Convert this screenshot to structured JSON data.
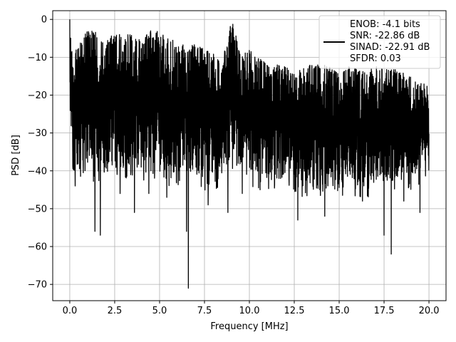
{
  "chart_data": {
    "type": "line",
    "title": "",
    "xlabel": "Frequency [MHz]",
    "ylabel": "PSD [dB]",
    "xlim": [
      -0.95,
      20.95
    ],
    "ylim": [
      -74.3,
      2.3
    ],
    "xticks": [
      0.0,
      2.5,
      5.0,
      7.5,
      10.0,
      12.5,
      15.0,
      17.5,
      20.0
    ],
    "xtick_labels": [
      "0.0",
      "2.5",
      "5.0",
      "7.5",
      "10.0",
      "12.5",
      "15.0",
      "17.5",
      "20.0"
    ],
    "yticks": [
      0,
      -10,
      -20,
      -30,
      -40,
      -50,
      -60,
      -70
    ],
    "ytick_labels": [
      "0",
      "−10",
      "−20",
      "−30",
      "−40",
      "−50",
      "−60",
      "−70"
    ],
    "grid": true,
    "legend_position": "upper right",
    "line_color": "#000000",
    "series": [
      {
        "name": "ENOB: -4.1 bits\nSNR: -22.86 dB\nSINAD: -22.91 dB\nSFDR: 0.03",
        "legend_lines": [
          "ENOB: -4.1 bits",
          "SNR: -22.86 dB",
          "SINAD: -22.91 dB",
          "SFDR: 0.03"
        ],
        "x_range": [
          0.0,
          20.0
        ],
        "envelope_x": [
          0.0,
          0.05,
          0.2,
          0.5,
          1.0,
          1.5,
          2.0,
          2.5,
          3.0,
          3.5,
          4.0,
          4.5,
          5.0,
          5.5,
          6.0,
          6.5,
          7.0,
          7.5,
          8.0,
          8.5,
          8.9,
          9.1,
          9.5,
          10.0,
          10.5,
          11.0,
          11.5,
          12.0,
          12.5,
          13.0,
          13.5,
          14.0,
          14.5,
          15.0,
          15.5,
          16.0,
          16.5,
          17.0,
          17.5,
          18.0,
          18.5,
          19.0,
          19.5,
          20.0
        ],
        "envelope_upper": [
          0,
          -2,
          -10,
          -6,
          -3,
          -3,
          -6,
          -3,
          -4,
          -4,
          -5,
          -3,
          -3,
          -5,
          -6,
          -7,
          -6,
          -8,
          -9,
          -11,
          -2,
          -1,
          -9,
          -8,
          -10,
          -12,
          -12,
          -12,
          -14,
          -13,
          -11,
          -12,
          -12,
          -14,
          -12,
          -13,
          -14,
          -12,
          -13,
          -13,
          -14,
          -15,
          -16,
          -18
        ],
        "envelope_lower": [
          -22,
          -30,
          -40,
          -40,
          -39,
          -39,
          -38,
          -38,
          -40,
          -38,
          -39,
          -38,
          -38,
          -40,
          -40,
          -41,
          -41,
          -42,
          -41,
          -41,
          -37,
          -36,
          -39,
          -40,
          -41,
          -41,
          -42,
          -42,
          -42,
          -43,
          -42,
          -43,
          -43,
          -43,
          -43,
          -43,
          -43,
          -43,
          -42,
          -42,
          -42,
          -41,
          -40,
          -36
        ],
        "notable_dips": [
          {
            "x": 0.3,
            "y": -44
          },
          {
            "x": 1.4,
            "y": -56
          },
          {
            "x": 1.7,
            "y": -57
          },
          {
            "x": 2.8,
            "y": -46
          },
          {
            "x": 3.6,
            "y": -51
          },
          {
            "x": 4.4,
            "y": -46
          },
          {
            "x": 5.4,
            "y": -47
          },
          {
            "x": 6.5,
            "y": -56
          },
          {
            "x": 6.6,
            "y": -71
          },
          {
            "x": 7.7,
            "y": -49
          },
          {
            "x": 8.8,
            "y": -51
          },
          {
            "x": 9.6,
            "y": -46
          },
          {
            "x": 10.6,
            "y": -45
          },
          {
            "x": 12.7,
            "y": -53
          },
          {
            "x": 14.2,
            "y": -52
          },
          {
            "x": 16.3,
            "y": -48
          },
          {
            "x": 17.5,
            "y": -57
          },
          {
            "x": 17.9,
            "y": -62
          },
          {
            "x": 18.6,
            "y": -48
          },
          {
            "x": 19.5,
            "y": -51
          }
        ]
      }
    ]
  }
}
